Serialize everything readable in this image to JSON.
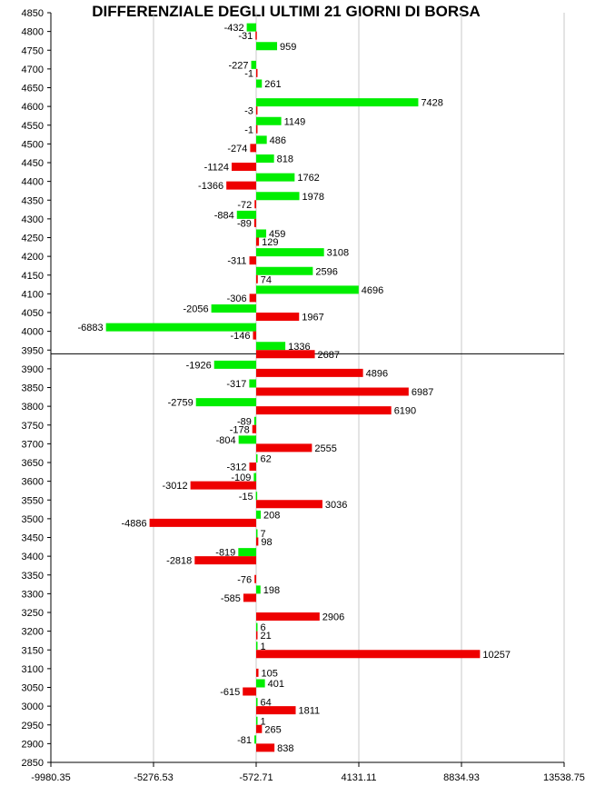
{
  "chart_data": {
    "type": "bar",
    "orientation": "horizontal",
    "title": "DIFFERENZIALE DEGLI ULTIMI 21 GIORNI DI BORSA",
    "xlabel": "",
    "ylabel": "",
    "xlim": [
      -9980.35,
      13538.75
    ],
    "ylim": [
      2850,
      4850
    ],
    "x_ticks": [
      "-9980.35",
      "-5276.53",
      "-572.71",
      "4131.11",
      "8834.93",
      "13538.75"
    ],
    "y_ticks": [
      4850,
      4800,
      4750,
      4700,
      4650,
      4600,
      4550,
      4500,
      4450,
      4400,
      4350,
      4300,
      4250,
      4200,
      4150,
      4100,
      4050,
      4000,
      3950,
      3900,
      3850,
      3800,
      3750,
      3700,
      3650,
      3600,
      3550,
      3500,
      3450,
      3400,
      3350,
      3300,
      3250,
      3200,
      3150,
      3100,
      3050,
      3000,
      2950,
      2900,
      2850
    ],
    "grid": true,
    "baseline": -572.71,
    "reference_line_y": 3940,
    "colors": {
      "series_a": "#00ee00",
      "series_b": "#ee0000",
      "reference": "#000000",
      "grid": "#c8c8c8"
    },
    "categories": [
      4800,
      4750,
      4700,
      4650,
      4600,
      4550,
      4500,
      4450,
      4400,
      4350,
      4300,
      4250,
      4200,
      4150,
      4100,
      4050,
      4000,
      3950,
      3900,
      3850,
      3800,
      3750,
      3700,
      3650,
      3600,
      3550,
      3500,
      3450,
      3400,
      3350,
      3300,
      3250,
      3200,
      3150,
      3100,
      3050,
      3000,
      2950,
      2900
    ],
    "series": [
      {
        "color": "#00ee00",
        "values": [
          -432,
          959,
          -227,
          261,
          7428,
          1149,
          486,
          818,
          1762,
          1978,
          -884,
          459,
          3108,
          2596,
          4696,
          -2056,
          -6883,
          1336,
          -1926,
          -317,
          -2759,
          -89,
          -804,
          62,
          -109,
          -15,
          208,
          7,
          -819,
          null,
          198,
          null,
          6,
          1,
          null,
          401,
          64,
          1,
          -81
        ]
      },
      {
        "color": "#ee0000",
        "values": [
          -31,
          null,
          -1,
          null,
          -3,
          -1,
          -274,
          -1124,
          -1366,
          -72,
          -89,
          129,
          -311,
          74,
          -306,
          1967,
          -146,
          2687,
          4896,
          6987,
          6190,
          -178,
          2555,
          -312,
          -3012,
          3036,
          -4886,
          98,
          -2818,
          -76,
          -585,
          2906,
          21,
          10257,
          105,
          -615,
          1811,
          265,
          838
        ]
      }
    ]
  }
}
